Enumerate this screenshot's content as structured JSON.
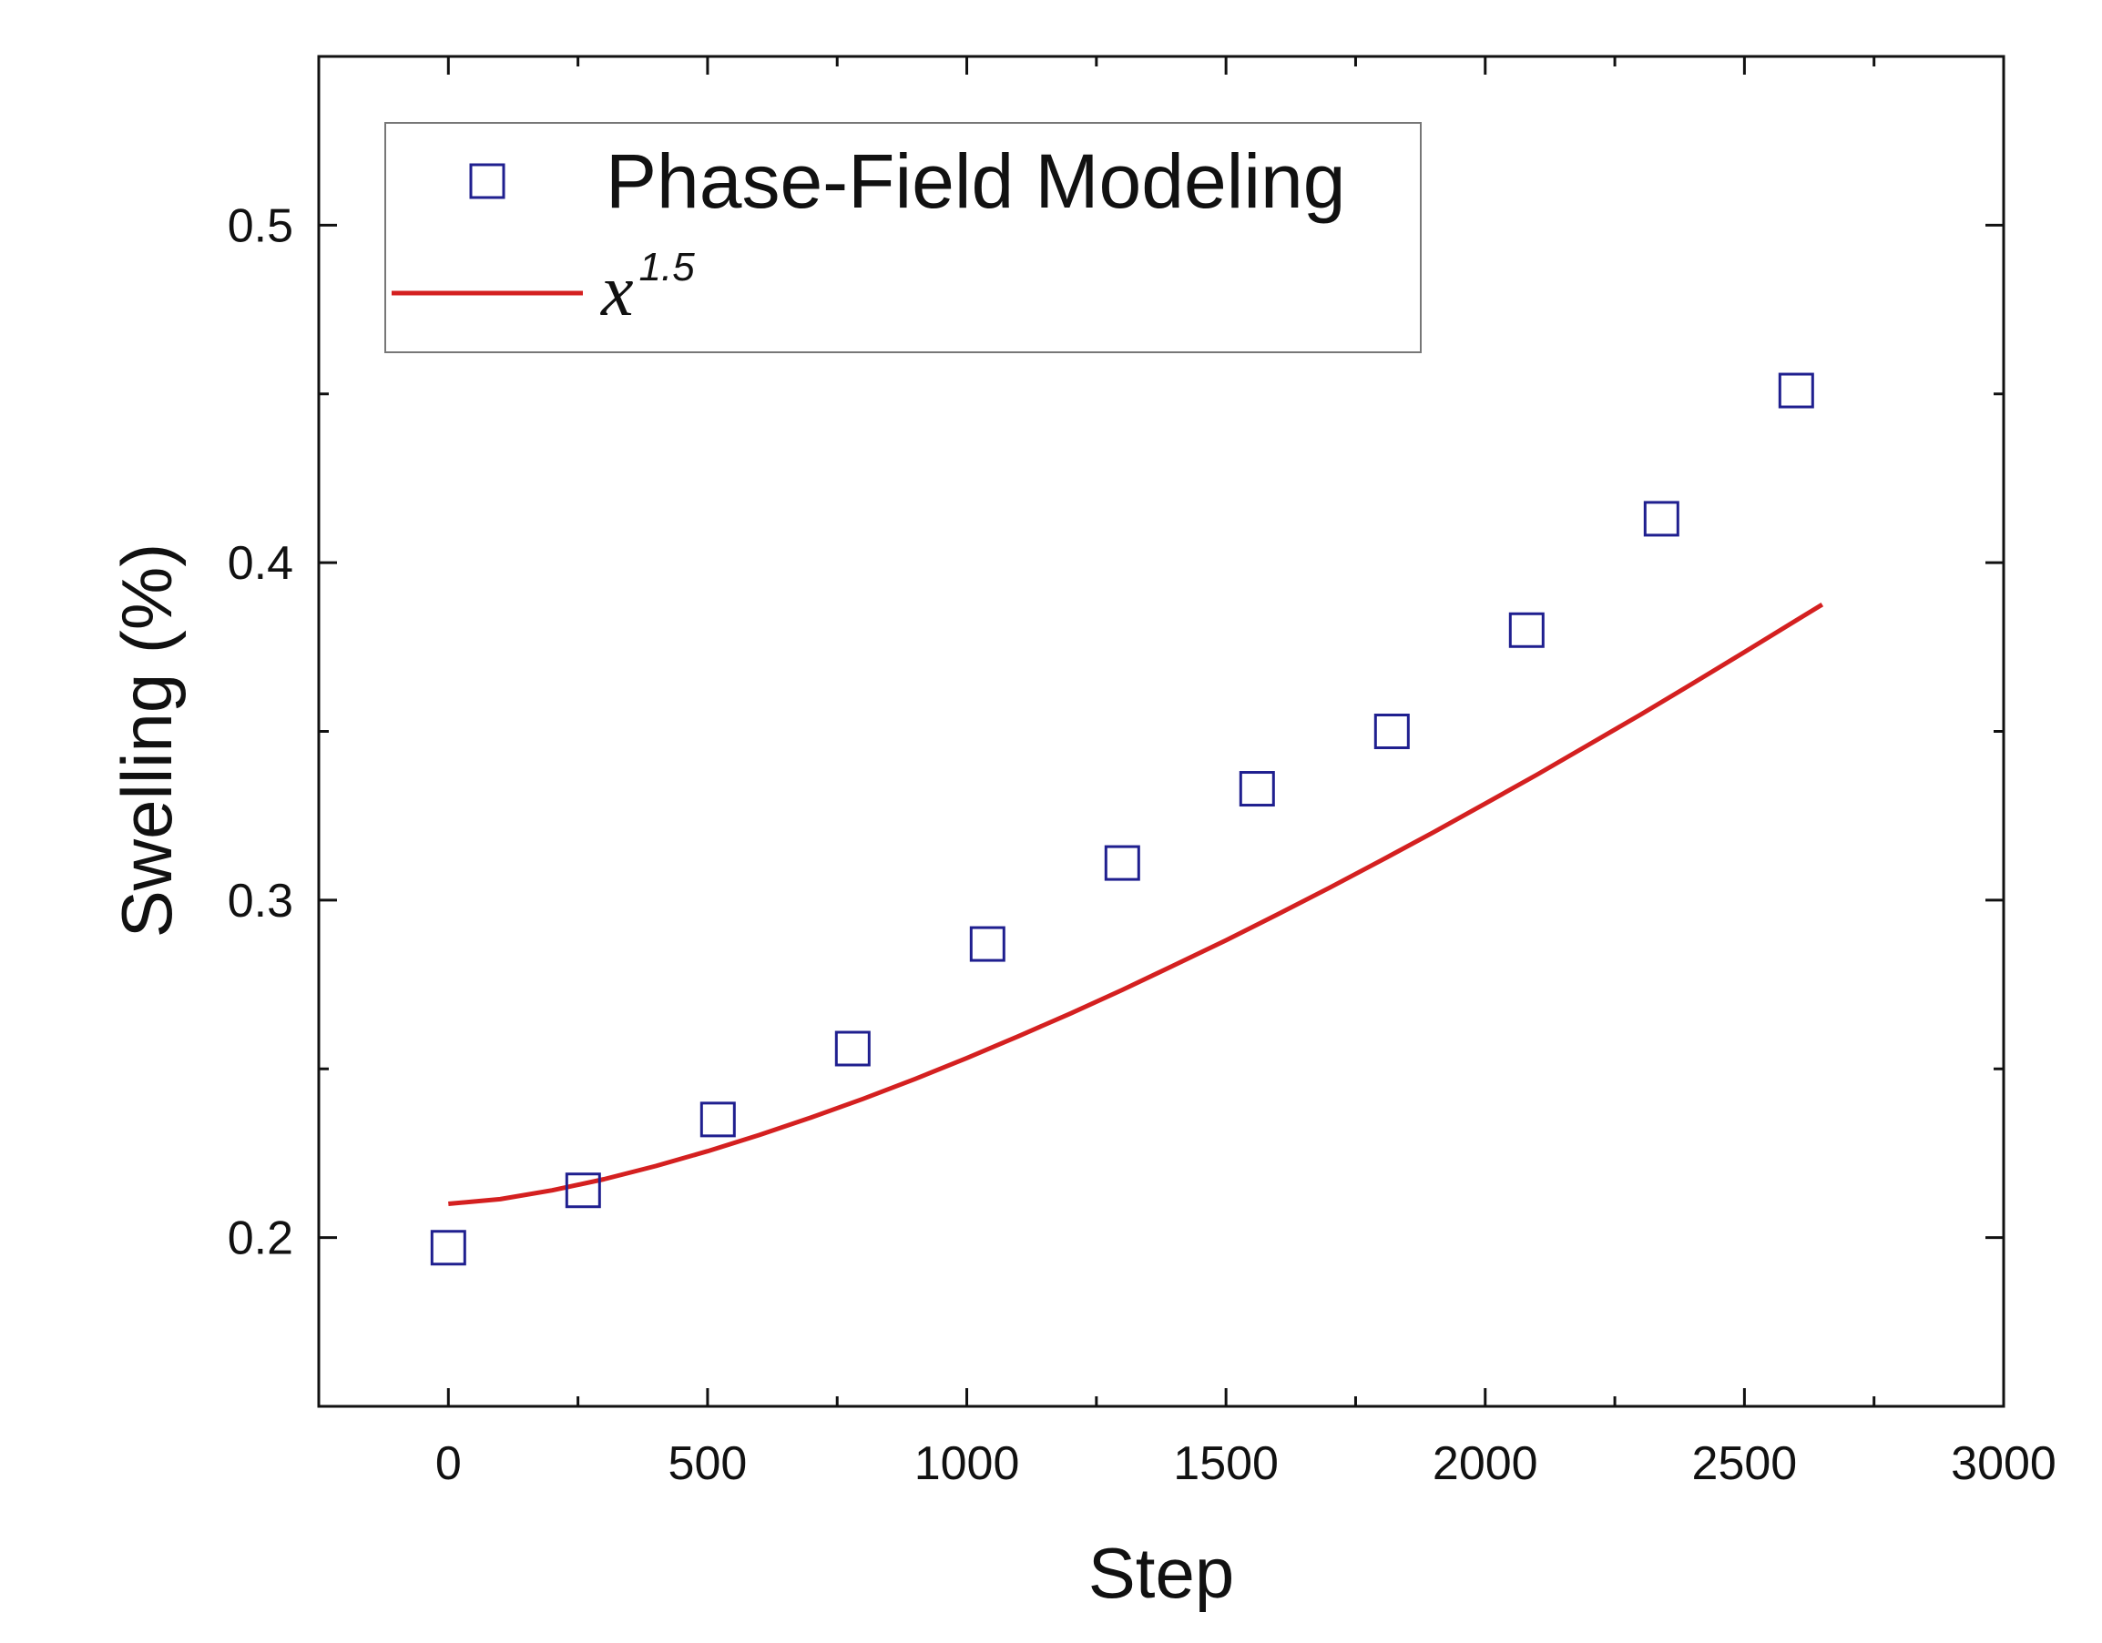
{
  "chart_data": {
    "type": "scatter",
    "xlabel": "Step",
    "ylabel": "Swelling (%)",
    "xlim": [
      -250,
      3000
    ],
    "ylim": [
      0.15,
      0.55
    ],
    "x_ticks": [
      0,
      500,
      1000,
      1500,
      2000,
      2500,
      3000
    ],
    "x_tick_labels": [
      "0",
      "500",
      "1000",
      "1500",
      "2000",
      "2500",
      "3000"
    ],
    "y_ticks": [
      0.2,
      0.3,
      0.4,
      0.5
    ],
    "y_tick_labels": [
      "0.2",
      "0.3",
      "0.4",
      "0.5"
    ],
    "grid": false,
    "legend_position": "top-left",
    "series": [
      {
        "name": "Phase-Field Modeling",
        "kind": "scatter",
        "marker": "open-square",
        "color": "#1f1f8f",
        "x": [
          0,
          260,
          520,
          780,
          1040,
          1300,
          1560,
          1820,
          2080,
          2340,
          2600
        ],
        "y": [
          0.197,
          0.214,
          0.235,
          0.256,
          0.287,
          0.311,
          0.333,
          0.35,
          0.38,
          0.413,
          0.451
        ]
      },
      {
        "name_base": "x",
        "name_exponent": "1.5",
        "kind": "line",
        "color": "#d42020",
        "x": [
          0,
          100,
          200,
          300,
          400,
          500,
          600,
          700,
          800,
          900,
          1000,
          1100,
          1200,
          1300,
          1400,
          1500,
          1600,
          1700,
          1800,
          1900,
          2000,
          2100,
          2200,
          2300,
          2400,
          2500,
          2600,
          2650
        ],
        "y": [
          0.21,
          0.2114,
          0.214,
          0.2173,
          0.2212,
          0.2256,
          0.2304,
          0.2356,
          0.2411,
          0.247,
          0.2532,
          0.2597,
          0.2664,
          0.2734,
          0.2807,
          0.2881,
          0.2958,
          0.3037,
          0.3118,
          0.3201,
          0.3286,
          0.3372,
          0.3461,
          0.355,
          0.3642,
          0.3735,
          0.3829,
          0.3876
        ]
      }
    ]
  }
}
